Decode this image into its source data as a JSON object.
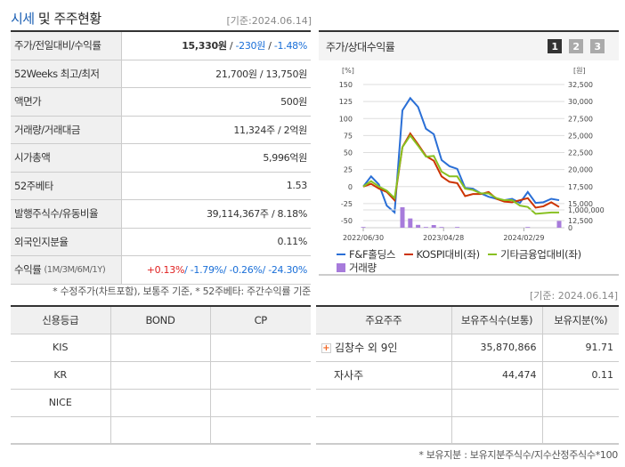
{
  "header": {
    "title_highlight": "시세",
    "title_rest": " 및 주주현황",
    "base_date": "[기준:2024.06.14]"
  },
  "summary": {
    "rows": [
      {
        "label": "주가/전일대비/수익률",
        "price": "15,330원",
        "change": "-230원",
        "rate": "-1.48%"
      },
      {
        "label": "52Weeks 최고/최저",
        "value": "21,700원 / 13,750원"
      },
      {
        "label": "액면가",
        "value": "500원"
      },
      {
        "label": "거래량/거래대금",
        "value": "11,324주 / 2억원"
      },
      {
        "label": "시가총액",
        "value": "5,996억원"
      },
      {
        "label": "52주베타",
        "value": "1.53"
      },
      {
        "label": "발행주식수/유동비율",
        "value": "39,114,367주 / 8.18%"
      },
      {
        "label": "외국인지분율",
        "value": "0.11%"
      },
      {
        "label": "수익률",
        "label_sub": "(1M/3M/6M/1Y)",
        "r1m": "+0.13%",
        "r3m": "-1.79%",
        "r6m": "-0.26%",
        "r1y": "-24.30%"
      }
    ],
    "note": "* 수정주가(차트포함), 보통주 기준, * 52주베타: 주간수익률 기준"
  },
  "chart_panel": {
    "title": "주가/상대수익률",
    "tabs": [
      "1",
      "2",
      "3"
    ],
    "active_tab": "1"
  },
  "chart_data": {
    "type": "line",
    "title": "주가/상대수익률",
    "y_left_label": "[%]",
    "y_right_label": "[원]",
    "y_left_ticks": [
      150,
      125,
      100,
      75,
      50,
      25,
      0,
      -25,
      -50
    ],
    "y_right_ticks": [
      "32,500",
      "30,000",
      "27,500",
      "25,000",
      "22,500",
      "20,000",
      "17,500",
      "15,000",
      "12,500"
    ],
    "volume_ticks": [
      "1,000,000",
      "0"
    ],
    "x_tick_labels": [
      "2022/06/30",
      "2023/04/28",
      "2024/02/29"
    ],
    "ylim": [
      -50,
      150
    ],
    "series": [
      {
        "name": "F&F홀딩스",
        "color": "#2a6fd6",
        "values": [
          0,
          15,
          3,
          -28,
          -38,
          112,
          130,
          117,
          85,
          77,
          39,
          30,
          26,
          -2,
          -3,
          -10,
          -15,
          -18,
          -20,
          -18,
          -24,
          -8,
          -24,
          -23,
          -18,
          -20
        ]
      },
      {
        "name": "KOSPI대비(좌)",
        "color": "#cc3300",
        "values": [
          0,
          4,
          -3,
          -8,
          -20,
          58,
          78,
          62,
          45,
          38,
          15,
          7,
          5,
          -14,
          -11,
          -11,
          -8,
          -18,
          -22,
          -23,
          -20,
          -17,
          -31,
          -29,
          -23,
          -30
        ]
      },
      {
        "name": "기타금융업대비(좌)",
        "color": "#88c021",
        "values": [
          0,
          8,
          0,
          -6,
          -17,
          58,
          75,
          60,
          44,
          45,
          22,
          15,
          15,
          -3,
          -5,
          -10,
          -10,
          -17,
          -20,
          -20,
          -28,
          -30,
          -40,
          -39,
          -38,
          -38
        ]
      }
    ],
    "volume": {
      "name": "거래량",
      "color": "#a77bdb",
      "values": [
        40000,
        0,
        0,
        0,
        0,
        1150000,
        520000,
        160000,
        40000,
        150000,
        40000,
        0,
        40000,
        0,
        0,
        0,
        0,
        0,
        0,
        0,
        0,
        40000,
        0,
        0,
        0,
        380000
      ]
    },
    "legend": [
      "F&F홀딩스",
      "KOSPI대비(좌)",
      "기타금융업대비(좌)",
      "거래량"
    ],
    "grid": true,
    "legend_position": "bottom"
  },
  "credit": {
    "headers": [
      "신용등급",
      "BOND",
      "CP"
    ],
    "rows": [
      [
        "KIS",
        "",
        ""
      ],
      [
        "KR",
        "",
        ""
      ],
      [
        "NICE",
        "",
        ""
      ],
      [
        "",
        "",
        ""
      ]
    ]
  },
  "holders": {
    "base_date": "[기준: 2024.06.14]",
    "headers": [
      "주요주주",
      "보유주식수(보통)",
      "보유지분(%)"
    ],
    "rows": [
      {
        "name": "김창수 외 9인",
        "shares": "35,870,866",
        "pct": "91.71",
        "expandable": true
      },
      {
        "name": "자사주",
        "shares": "44,474",
        "pct": "0.11",
        "expandable": false
      },
      {
        "name": "",
        "shares": "",
        "pct": ""
      },
      {
        "name": "",
        "shares": "",
        "pct": ""
      }
    ],
    "note": "* 보유지분 : 보유지분주식수/지수산정주식수*100"
  }
}
